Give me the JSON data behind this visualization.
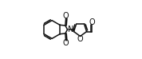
{
  "bg_color": "#ffffff",
  "line_color": "#111111",
  "line_width": 1.1,
  "figsize": [
    1.78,
    0.74
  ],
  "dpi": 100,
  "xlim": [
    0.0,
    1.0
  ],
  "ylim": [
    0.0,
    1.0
  ]
}
